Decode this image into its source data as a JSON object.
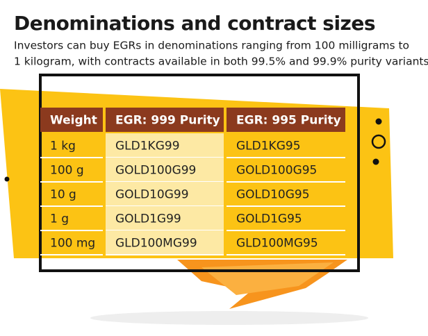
{
  "header": {
    "title": "Denominations and contract sizes",
    "subtitle_lines": [
      "Investors can buy EGRs in denominations ranging from 100 milligrams to",
      "1 kilogram, with contracts available in both 99.5% and 99.9% purity variants."
    ]
  },
  "table": {
    "columns": [
      "Weight",
      "EGR: 999 Purity",
      "EGR: 995 Purity"
    ],
    "rows": [
      [
        "1 kg",
        "GLD1KG99",
        "GLD1KG95"
      ],
      [
        "100 g",
        "GOLD100G99",
        "GOLD100G95"
      ],
      [
        "10 g",
        "GOLD10G99",
        "GOLD10G95"
      ],
      [
        "1 g",
        "GOLD1G99",
        "GOLD1G95"
      ],
      [
        "100 mg",
        "GLD100MG99",
        "GLD100MG95"
      ]
    ]
  }
}
